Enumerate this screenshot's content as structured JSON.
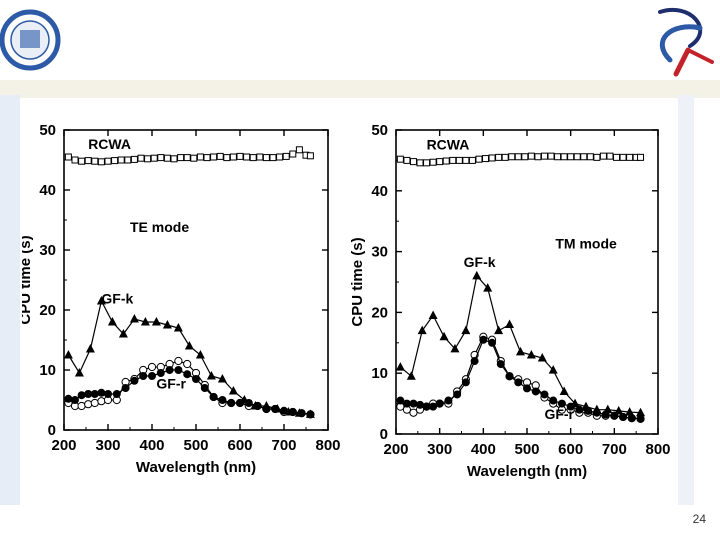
{
  "slide": {
    "page_number": "24",
    "colors": {
      "header_band": "#f4f1e6",
      "left_border": "#e7edf7",
      "logo_blue": "#2d5aa6",
      "logo_red": "#c4222a",
      "logo_navy": "#1f2f6e"
    }
  },
  "chart_data": [
    {
      "type": "line",
      "title": "",
      "xlabel": "Wavelength (nm)",
      "ylabel": "CPU time (s)",
      "xlim": [
        200,
        800
      ],
      "ylim": [
        0,
        50
      ],
      "xticks": [
        200,
        300,
        400,
        500,
        600,
        700,
        800
      ],
      "yticks": [
        0,
        10,
        20,
        30,
        40,
        50
      ],
      "annotations": [
        {
          "text": "RCWA",
          "x": 255,
          "y": 46.8
        },
        {
          "text": "TE mode",
          "x": 350,
          "y": 33
        },
        {
          "text": "GF-k",
          "x": 285,
          "y": 21.1
        },
        {
          "text": "GF-r",
          "x": 410,
          "y": 6.9
        }
      ],
      "series": [
        {
          "name": "RCWA",
          "marker": "square-open",
          "x": [
            210,
            225,
            240,
            255,
            270,
            285,
            300,
            315,
            330,
            345,
            360,
            375,
            390,
            405,
            420,
            435,
            450,
            465,
            480,
            495,
            510,
            525,
            540,
            555,
            570,
            585,
            600,
            615,
            630,
            645,
            660,
            675,
            690,
            705,
            720,
            735,
            750,
            760
          ],
          "y": [
            45.5,
            45.0,
            44.8,
            44.9,
            44.8,
            44.7,
            44.8,
            44.9,
            45.0,
            45.0,
            45.1,
            45.3,
            45.2,
            45.3,
            45.4,
            45.3,
            45.2,
            45.4,
            45.4,
            45.3,
            45.5,
            45.4,
            45.5,
            45.6,
            45.4,
            45.5,
            45.6,
            45.5,
            45.4,
            45.5,
            45.4,
            45.4,
            45.5,
            45.6,
            46.0,
            46.7,
            45.8,
            45.7
          ]
        },
        {
          "name": "GF-k",
          "marker": "triangle-filled",
          "x": [
            210,
            235,
            260,
            285,
            310,
            335,
            360,
            385,
            410,
            435,
            460,
            485,
            510,
            535,
            560,
            585,
            610,
            635,
            660,
            685,
            710,
            735,
            760
          ],
          "y": [
            12.5,
            9.5,
            13.5,
            21.5,
            18.0,
            16.0,
            18.5,
            18.0,
            18.0,
            17.5,
            17.0,
            14.0,
            12.5,
            9.0,
            8.5,
            6.5,
            5.0,
            4.0,
            4.0,
            3.5,
            3.0,
            2.8,
            2.6
          ]
        },
        {
          "name": "GF-r (open)",
          "marker": "circle-open",
          "x": [
            210,
            225,
            240,
            255,
            270,
            285,
            300,
            320,
            340,
            360,
            380,
            400,
            420,
            440,
            460,
            480,
            500,
            520,
            540,
            560,
            580,
            600,
            620,
            640,
            660,
            680,
            700,
            720,
            740,
            760
          ],
          "y": [
            4.5,
            4.0,
            4.0,
            4.3,
            4.5,
            4.8,
            5.0,
            5.0,
            8.0,
            8.5,
            10.0,
            10.5,
            10.5,
            11.0,
            11.5,
            11.0,
            9.5,
            7.5,
            5.5,
            4.5,
            4.5,
            4.5,
            4.0,
            4.0,
            3.5,
            3.5,
            3.0,
            3.0,
            2.8,
            2.6
          ]
        },
        {
          "name": "GF-r (filled)",
          "marker": "circle-filled",
          "x": [
            210,
            225,
            240,
            255,
            270,
            285,
            300,
            320,
            340,
            360,
            380,
            400,
            420,
            440,
            460,
            480,
            500,
            520,
            540,
            560,
            580,
            600,
            620,
            640,
            660,
            680,
            700,
            720,
            740,
            760
          ],
          "y": [
            5.2,
            5.0,
            5.8,
            6.0,
            6.0,
            6.2,
            6.0,
            6.0,
            7.0,
            8.2,
            9.0,
            9.0,
            9.5,
            10.0,
            10.0,
            9.3,
            8.5,
            7.0,
            5.5,
            5.0,
            4.5,
            4.5,
            4.5,
            4.0,
            3.5,
            3.5,
            3.2,
            3.0,
            2.8,
            2.6
          ]
        }
      ]
    },
    {
      "type": "line",
      "title": "",
      "xlabel": "Wavelength (nm)",
      "ylabel": "CPU time (s)",
      "xlim": [
        200,
        800
      ],
      "ylim": [
        0,
        50
      ],
      "xticks": [
        200,
        300,
        400,
        500,
        600,
        700,
        800
      ],
      "yticks": [
        0,
        10,
        20,
        30,
        40,
        50
      ],
      "annotations": [
        {
          "text": "RCWA",
          "x": 270,
          "y": 46.8
        },
        {
          "text": "GF-k",
          "x": 355,
          "y": 27.5
        },
        {
          "text": "TM mode",
          "x": 565,
          "y": 30.5
        },
        {
          "text": "GF-r",
          "x": 540,
          "y": 2.5
        }
      ],
      "series": [
        {
          "name": "RCWA",
          "marker": "square-open",
          "x": [
            210,
            225,
            240,
            255,
            270,
            285,
            300,
            315,
            330,
            345,
            360,
            375,
            390,
            405,
            420,
            435,
            450,
            465,
            480,
            495,
            510,
            525,
            540,
            555,
            570,
            585,
            600,
            615,
            630,
            645,
            660,
            675,
            690,
            705,
            720,
            735,
            750,
            760
          ],
          "y": [
            45.2,
            45.0,
            44.8,
            44.6,
            44.6,
            44.7,
            44.8,
            44.9,
            45.0,
            45.0,
            45.0,
            45.0,
            45.2,
            45.3,
            45.4,
            45.5,
            45.5,
            45.6,
            45.6,
            45.6,
            45.7,
            45.6,
            45.7,
            45.7,
            45.6,
            45.6,
            45.6,
            45.6,
            45.6,
            45.6,
            45.5,
            45.7,
            45.7,
            45.5,
            45.5,
            45.5,
            45.5,
            45.5
          ]
        },
        {
          "name": "GF-k",
          "marker": "triangle-filled",
          "x": [
            210,
            235,
            260,
            285,
            310,
            335,
            360,
            385,
            410,
            435,
            460,
            485,
            510,
            535,
            560,
            585,
            610,
            635,
            660,
            685,
            710,
            735,
            760
          ],
          "y": [
            11.0,
            9.5,
            17.0,
            19.5,
            16.0,
            14.0,
            17.0,
            26.0,
            24.0,
            17.0,
            18.0,
            13.5,
            13.0,
            12.5,
            10.5,
            7.0,
            5.0,
            4.5,
            4.0,
            4.0,
            3.8,
            3.6,
            3.5
          ]
        },
        {
          "name": "GF-r (open)",
          "marker": "circle-open",
          "x": [
            210,
            225,
            240,
            255,
            270,
            285,
            300,
            320,
            340,
            360,
            380,
            400,
            420,
            440,
            460,
            480,
            500,
            520,
            540,
            560,
            580,
            600,
            620,
            640,
            660,
            680,
            700,
            720,
            740,
            760
          ],
          "y": [
            4.5,
            4.0,
            3.5,
            4.0,
            4.5,
            5.0,
            5.0,
            5.0,
            7.0,
            9.0,
            13.0,
            16.0,
            15.5,
            12.0,
            9.5,
            9.0,
            8.5,
            8.0,
            6.0,
            5.0,
            4.0,
            4.0,
            3.5,
            3.5,
            3.0,
            3.0,
            3.0,
            2.8,
            2.6,
            2.5
          ]
        },
        {
          "name": "GF-r (filled)",
          "marker": "circle-filled",
          "x": [
            210,
            225,
            240,
            255,
            270,
            285,
            300,
            320,
            340,
            360,
            380,
            400,
            420,
            440,
            460,
            480,
            500,
            520,
            540,
            560,
            580,
            600,
            620,
            640,
            660,
            680,
            700,
            720,
            740,
            760
          ],
          "y": [
            5.5,
            5.0,
            5.0,
            4.8,
            4.5,
            4.5,
            5.0,
            5.5,
            6.5,
            8.5,
            12.0,
            15.5,
            15.0,
            11.5,
            9.5,
            8.5,
            7.5,
            7.0,
            6.5,
            5.5,
            5.0,
            4.5,
            4.0,
            3.8,
            3.5,
            3.2,
            3.0,
            2.8,
            2.6,
            2.5
          ]
        }
      ]
    }
  ]
}
